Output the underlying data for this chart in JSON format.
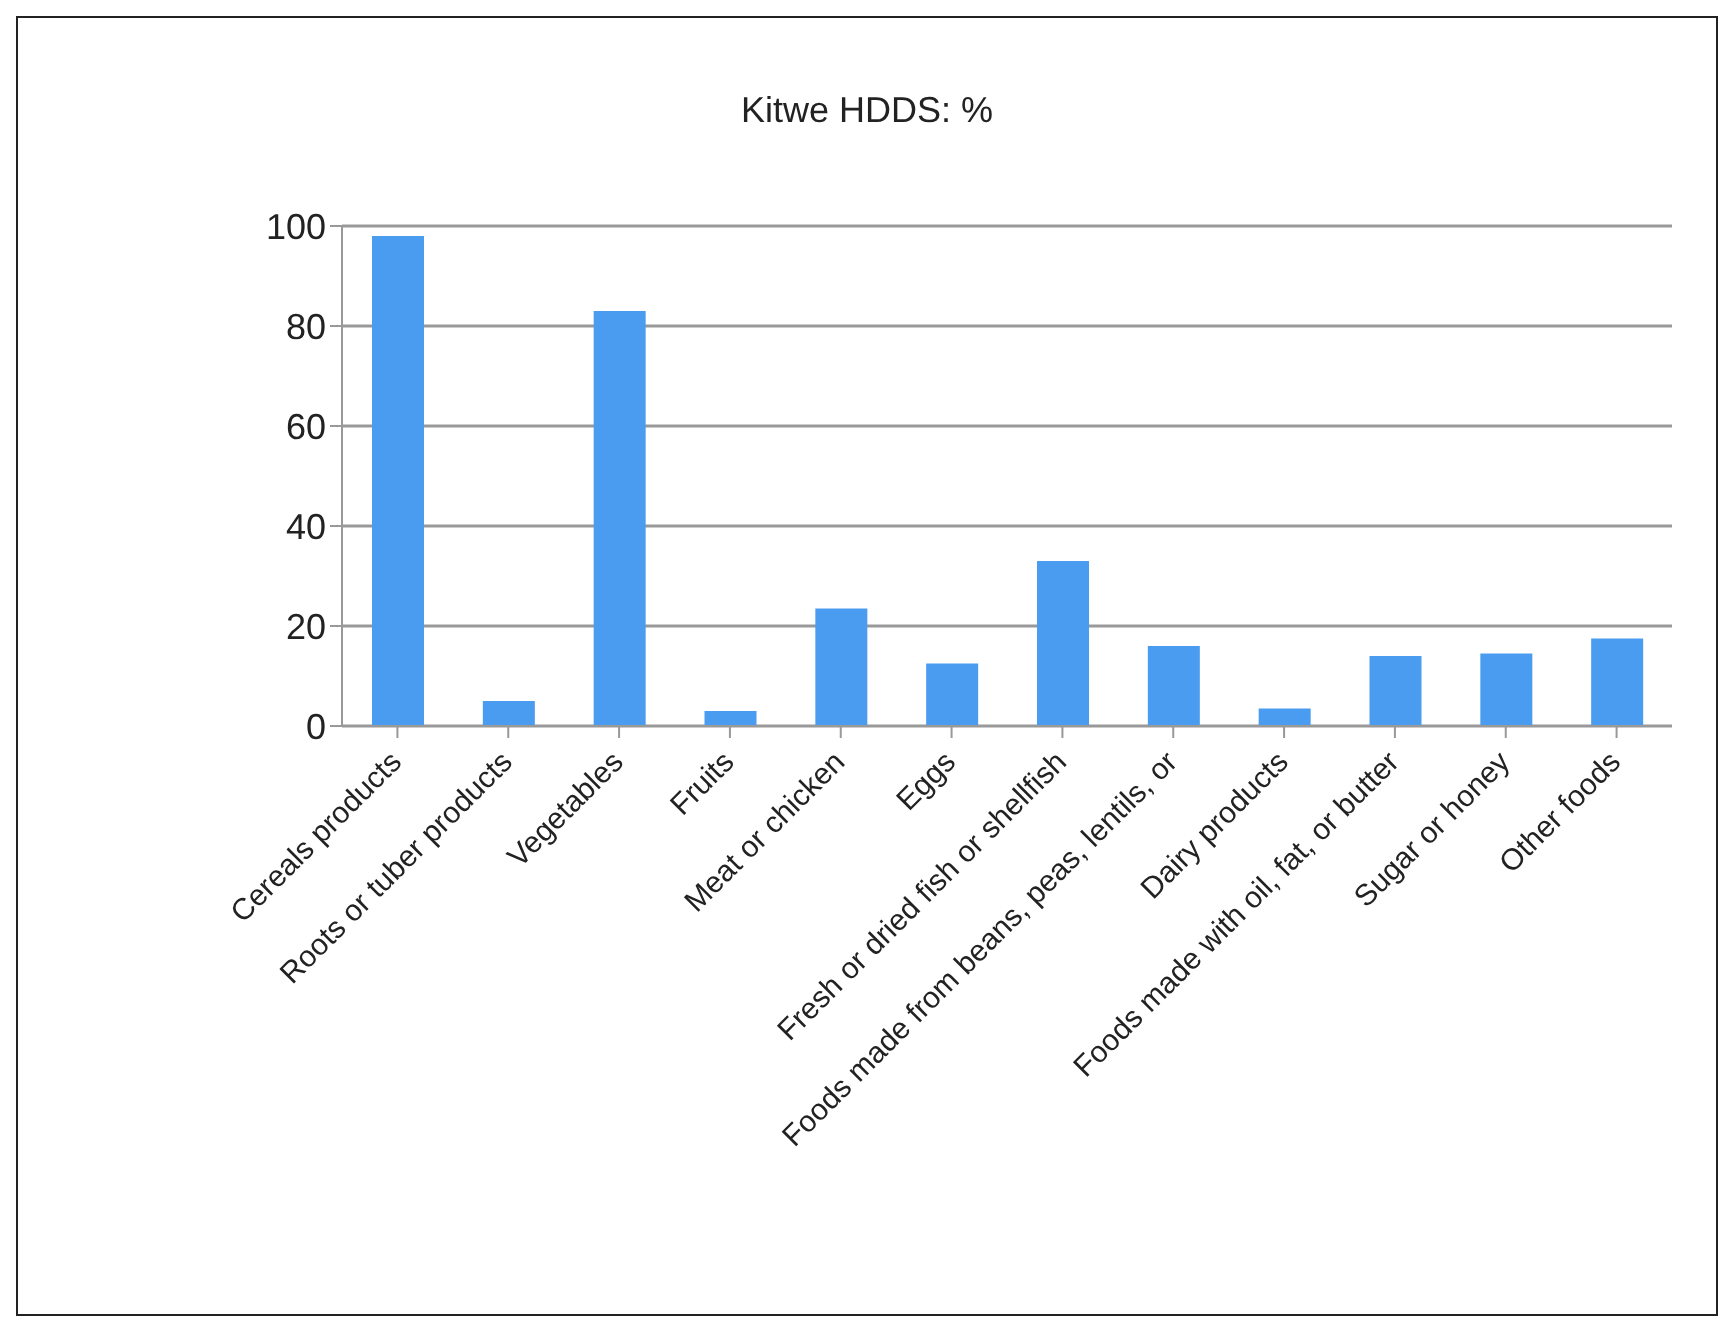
{
  "chart_data": {
    "type": "bar",
    "title": "Kitwe HDDS: %",
    "categories": [
      "Cereals products",
      "Roots or tuber products",
      "Vegetables",
      "Fruits",
      "Meat or chicken",
      "Eggs",
      "Fresh or dried fish or shellfish",
      "Foods made from beans, peas, lentils, or",
      "Dairy products",
      "Foods made with oil, fat, or butter",
      "Sugar or honey",
      "Other foods"
    ],
    "values": [
      98,
      5,
      83,
      3,
      23.5,
      12.5,
      33,
      16,
      3.5,
      14,
      14.5,
      17.5
    ],
    "color": "#4a9cf0",
    "ylim": [
      0,
      100
    ],
    "yticks": [
      0,
      20,
      40,
      60,
      80,
      100
    ],
    "grid": "y"
  }
}
